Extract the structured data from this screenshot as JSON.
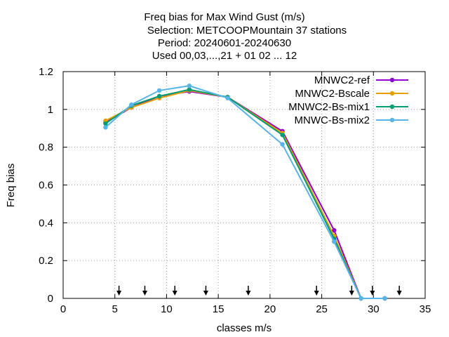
{
  "chart_data": {
    "type": "line",
    "title_lines": [
      "Freq bias  for Max Wind Gust (m/s)",
      "Selection: METCOOPMountain     37 stations",
      "Period: 20240601-20240630",
      "Used 00,03,...,21 + 01 02 ... 12"
    ],
    "xlabel": "classes m/s",
    "ylabel": "Freq bias",
    "xlim": [
      0,
      35
    ],
    "ylim": [
      0,
      1.2
    ],
    "xticks": [
      0,
      5,
      10,
      15,
      20,
      25,
      30,
      35
    ],
    "yticks": [
      0,
      0.2,
      0.4,
      0.6,
      0.8,
      1,
      1.2
    ],
    "xtick_labels": [
      "0",
      "5",
      "10",
      "15",
      "20",
      "25",
      "30",
      "35"
    ],
    "ytick_labels": [
      "0",
      "0.2",
      "0.4",
      "0.6",
      "0.8",
      "1",
      "1.2"
    ],
    "grid": true,
    "legend_position": "top-right",
    "class_limit_arrows_x": [
      5.4,
      7.9,
      10.8,
      13.8,
      17.9,
      24.5,
      27.9,
      29.9,
      32.5
    ],
    "series": [
      {
        "name": "MNWC2-ref",
        "color": "#9400d3",
        "marker": "filled-circle",
        "x": [
          4.1,
          6.6,
          9.3,
          12.2,
          15.9,
          21.2,
          26.2,
          28.8,
          31.1
        ],
        "y": [
          0.93,
          1.01,
          1.07,
          1.095,
          1.065,
          0.885,
          0.36,
          0.0,
          0.0
        ]
      },
      {
        "name": "MNWC2-Bscale",
        "color": "#e69f00",
        "marker": "filled-circle",
        "x": [
          4.1,
          6.6,
          9.3,
          12.2,
          15.9,
          21.2,
          26.2,
          28.8,
          31.1
        ],
        "y": [
          0.94,
          1.01,
          1.06,
          1.1,
          1.065,
          0.875,
          0.33,
          0.0,
          0.0
        ]
      },
      {
        "name": "MNWC2-Bs-mix1",
        "color": "#009e73",
        "marker": "filled-circle",
        "x": [
          4.1,
          6.6,
          9.3,
          12.2,
          15.9,
          21.2,
          26.2,
          28.8,
          31.1
        ],
        "y": [
          0.925,
          1.02,
          1.07,
          1.105,
          1.065,
          0.865,
          0.315,
          0.0,
          0.0
        ]
      },
      {
        "name": "MNWC-Bs-mix2",
        "color": "#56b4e9",
        "marker": "filled-circle",
        "x": [
          4.1,
          6.6,
          9.3,
          12.2,
          15.9,
          21.2,
          26.2,
          28.8,
          31.1
        ],
        "y": [
          0.905,
          1.025,
          1.1,
          1.125,
          1.06,
          0.815,
          0.3,
          0.0,
          0.0
        ]
      }
    ]
  }
}
